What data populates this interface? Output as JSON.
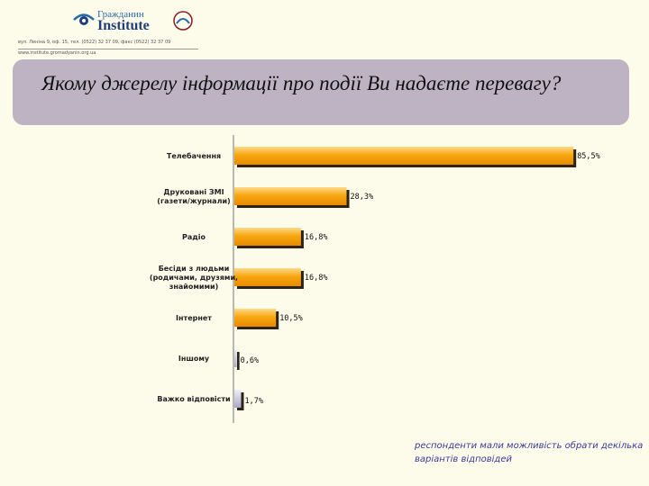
{
  "header": {
    "logo_line1": "Гражданин",
    "logo_line2": "Institute",
    "address_lines": [
      "вул. Леніна 9, оф. 15, тел. (0522) 32 37 09, факс (0522) 32 37 09",
      "www.institute.gromadyanin.org.ua"
    ]
  },
  "title": "Якому джерелу інформації про події Ви надаєте перевагу?",
  "chart_data": {
    "type": "bar",
    "orientation": "horizontal",
    "categories": [
      [
        "Телебачення"
      ],
      [
        "Друковані ЗМІ",
        "(газети/журнали)"
      ],
      [
        "Радіо"
      ],
      [
        "Бесіди з людьми",
        "(родичами, друзями,",
        "знайомими)"
      ],
      [
        "Інтернет"
      ],
      [
        "Іншому"
      ],
      [
        "Важко відповісти"
      ]
    ],
    "values": [
      85.5,
      28.3,
      16.8,
      16.8,
      10.5,
      0.6,
      1.7
    ],
    "value_labels": [
      "85,5%",
      "28,3%",
      "16,8%",
      "16,8%",
      "10,5%",
      "0,6%",
      "1,7%"
    ],
    "xlim": [
      0,
      100
    ],
    "colors": {
      "bar_main": "#f5a410",
      "bar_light": "#ffc64a",
      "bar_minor": "#c9c9dc",
      "shadow": "#2b2218"
    },
    "grid": false,
    "legend": "none"
  },
  "footnote": "респонденти мали можливість обрати декілька варіантів відповідей"
}
